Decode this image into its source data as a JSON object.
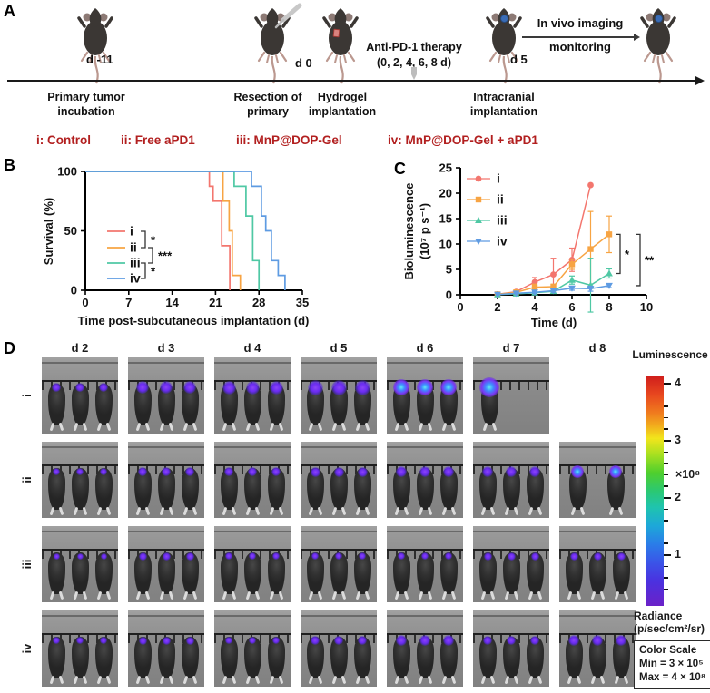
{
  "panelA": {
    "label": "A",
    "day_labels": [
      "d -11",
      "d 0",
      "d 5"
    ],
    "stage_labels": [
      "Primary tumor incubation",
      "Resection of primary",
      "Hydrogel implantation",
      "Intracranial implantation"
    ],
    "therapy_line1": "Anti-PD-1 therapy",
    "therapy_line2": "(0, 2, 4, 6, 8 d)",
    "imaging_line1": "In vivo imaging",
    "imaging_line2": "monitoring",
    "groups": [
      "i: Control",
      "ii: Free aPD1",
      "iii: MnP@DOP-Gel",
      "iv: MnP@DOP-Gel + aPD1"
    ],
    "groups_color": "#b21f1f"
  },
  "panelB_label": "B",
  "panelC_label": "C",
  "chart_data": [
    {
      "id": "survival",
      "type": "line",
      "subtype": "kaplan-meier-step",
      "xlabel": "Time post-subcutaneous implantation (d)",
      "ylabel": "Survival (%)",
      "xlim": [
        0,
        35
      ],
      "xticks": [
        0,
        7,
        14,
        21,
        28,
        35
      ],
      "ylim": [
        0,
        100
      ],
      "yticks": [
        0,
        50,
        100
      ],
      "legend_position": "inside-left",
      "series": [
        {
          "name": "i",
          "color": "#f3766e",
          "steps": [
            [
              0,
              100
            ],
            [
              20,
              100
            ],
            [
              20,
              87.5
            ],
            [
              20.6,
              87.5
            ],
            [
              20.6,
              75
            ],
            [
              22,
              75
            ],
            [
              22,
              37.5
            ],
            [
              23.3,
              37.5
            ],
            [
              23.3,
              0
            ]
          ]
        },
        {
          "name": "ii",
          "color": "#f7a443",
          "steps": [
            [
              0,
              100
            ],
            [
              22.2,
              100
            ],
            [
              22.2,
              75
            ],
            [
              23.2,
              75
            ],
            [
              23.2,
              50
            ],
            [
              23.7,
              50
            ],
            [
              23.7,
              12.5
            ],
            [
              25,
              12.5
            ],
            [
              25,
              0
            ]
          ]
        },
        {
          "name": "iii",
          "color": "#4fc8a4",
          "steps": [
            [
              0,
              100
            ],
            [
              24,
              100
            ],
            [
              24,
              87.5
            ],
            [
              25.9,
              87.5
            ],
            [
              25.9,
              62.5
            ],
            [
              27,
              62.5
            ],
            [
              27,
              25
            ],
            [
              28,
              25
            ],
            [
              28,
              0
            ]
          ]
        },
        {
          "name": "iv",
          "color": "#5e9be2",
          "steps": [
            [
              0,
              100
            ],
            [
              26.8,
              100
            ],
            [
              26.8,
              87.5
            ],
            [
              28.4,
              87.5
            ],
            [
              28.4,
              62.5
            ],
            [
              29.1,
              62.5
            ],
            [
              29.1,
              50
            ],
            [
              30,
              50
            ],
            [
              30,
              25
            ],
            [
              31.1,
              25
            ],
            [
              31.1,
              12.5
            ],
            [
              32.2,
              12.5
            ],
            [
              32.2,
              0
            ]
          ]
        }
      ],
      "significance": [
        {
          "between": [
            "i",
            "ii"
          ],
          "label": "*"
        },
        {
          "between": [
            "ii",
            "iii"
          ],
          "label": "***"
        },
        {
          "between": [
            "iii",
            "iv"
          ],
          "label": "*"
        }
      ]
    },
    {
      "id": "bioluminescence",
      "type": "line",
      "xlabel": "Time (d)",
      "ylabel_line1": "Bioluminescence",
      "ylabel_line2": "(10⁷ p s⁻¹)",
      "xlim": [
        0,
        10
      ],
      "xticks": [
        0,
        2,
        4,
        6,
        8,
        10
      ],
      "ylim": [
        0,
        25
      ],
      "yticks": [
        0,
        5,
        10,
        15,
        20,
        25
      ],
      "legend_position": "inside-left",
      "x": [
        2,
        3,
        4,
        5,
        6,
        7,
        8
      ],
      "series": [
        {
          "name": "i",
          "color": "#f3766e",
          "marker": "circle",
          "y": [
            0.1,
            0.6,
            2.5,
            4.0,
            6.9,
            21.6,
            null
          ],
          "err": [
            0.1,
            0.3,
            0.9,
            3.2,
            2.3,
            0,
            null
          ]
        },
        {
          "name": "ii",
          "color": "#f7a443",
          "marker": "square",
          "y": [
            0.1,
            0.5,
            1.5,
            1.6,
            6.0,
            9.0,
            11.9
          ],
          "err": [
            0.1,
            0.2,
            0.6,
            0.5,
            1.0,
            7.4,
            3.6
          ]
        },
        {
          "name": "iii",
          "color": "#4fc8a4",
          "marker": "triangle-up",
          "y": [
            0.05,
            0.2,
            0.4,
            0.7,
            2.9,
            1.9,
            4.2
          ],
          "err": [
            0.05,
            0.1,
            0.2,
            0.3,
            0.8,
            5.3,
            0.9
          ]
        },
        {
          "name": "iv",
          "color": "#5e9be2",
          "marker": "triangle-down",
          "y": [
            0.05,
            0.3,
            0.5,
            0.8,
            1.3,
            1.2,
            1.8
          ],
          "err": [
            0.05,
            0.1,
            0.2,
            0.3,
            0.4,
            0.5,
            0.4
          ]
        }
      ],
      "significance": [
        {
          "between": [
            "ii",
            "iii"
          ],
          "label": "*"
        },
        {
          "between": [
            "ii",
            "iv"
          ],
          "label": "**"
        }
      ]
    }
  ],
  "panelD": {
    "label": "D",
    "columns": [
      "d 2",
      "d 3",
      "d 4",
      "d 5",
      "d 6",
      "d 7",
      "d 8"
    ],
    "rows": [
      {
        "label": "i",
        "cells": [
          {
            "mice": 3,
            "spot": 10
          },
          {
            "mice": 3,
            "spot": 14
          },
          {
            "mice": 3,
            "spot": 15
          },
          {
            "mice": 3,
            "spot": 17
          },
          {
            "mice": 3,
            "spot": 18,
            "bright": true
          },
          {
            "mice": 1,
            "spot": 22,
            "bright": true
          },
          {
            "mice": 0,
            "spot": 0,
            "empty": true
          }
        ]
      },
      {
        "label": "ii",
        "cells": [
          {
            "mice": 3,
            "spot": 8
          },
          {
            "mice": 3,
            "spot": 10
          },
          {
            "mice": 3,
            "spot": 10
          },
          {
            "mice": 3,
            "spot": 11
          },
          {
            "mice": 3,
            "spot": 12
          },
          {
            "mice": 3,
            "spot": 12
          },
          {
            "mice": 2,
            "spot": 14,
            "bright": true
          }
        ]
      },
      {
        "label": "iii",
        "cells": [
          {
            "mice": 3,
            "spot": 7
          },
          {
            "mice": 3,
            "spot": 9
          },
          {
            "mice": 3,
            "spot": 8
          },
          {
            "mice": 3,
            "spot": 8
          },
          {
            "mice": 3,
            "spot": 8
          },
          {
            "mice": 3,
            "spot": 9
          },
          {
            "mice": 3,
            "spot": 9
          }
        ]
      },
      {
        "label": "iv",
        "cells": [
          {
            "mice": 3,
            "spot": 8
          },
          {
            "mice": 3,
            "spot": 9
          },
          {
            "mice": 3,
            "spot": 8
          },
          {
            "mice": 3,
            "spot": 10
          },
          {
            "mice": 3,
            "spot": 12
          },
          {
            "mice": 3,
            "spot": 10
          },
          {
            "mice": 3,
            "spot": 12
          }
        ]
      }
    ],
    "colorbar": {
      "title": "Luminescence",
      "ticks": [
        4,
        3,
        2,
        1
      ],
      "multiplier": "×10⁸",
      "radiance_line1": "Radiance",
      "radiance_line2": "(p/sec/cm²/sr)",
      "scale_box_line1": "Color Scale",
      "scale_box_line2": "Min = 3 × 10⁵",
      "scale_box_line3": "Max = 4 × 10⁸"
    }
  }
}
